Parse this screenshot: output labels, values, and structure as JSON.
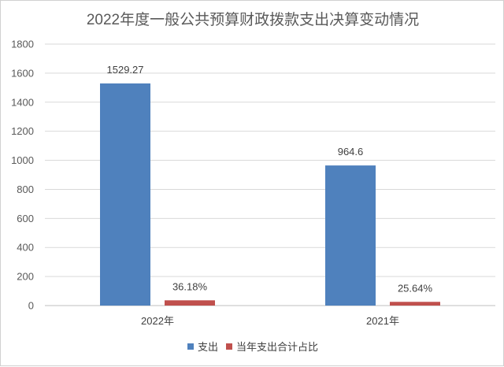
{
  "chart_data": {
    "type": "bar",
    "title": "2022年度一般公共预算财政拨款支出决算变动情况",
    "categories": [
      "2022年",
      "2021年"
    ],
    "series": [
      {
        "name": "支出",
        "values": [
          1529.27,
          964.6
        ],
        "labels": [
          "1529.27",
          "964.6"
        ],
        "color": "#4f81bd"
      },
      {
        "name": "当年支出合计占比",
        "values": [
          36.18,
          25.64
        ],
        "labels": [
          "36.18%",
          "25.64%"
        ],
        "color": "#c0504d"
      }
    ],
    "ylim": [
      0,
      1800
    ],
    "yticks": [
      "0",
      "200",
      "400",
      "600",
      "800",
      "1000",
      "1200",
      "1400",
      "1600",
      "1800"
    ],
    "grid": true,
    "legend": "bottom"
  }
}
